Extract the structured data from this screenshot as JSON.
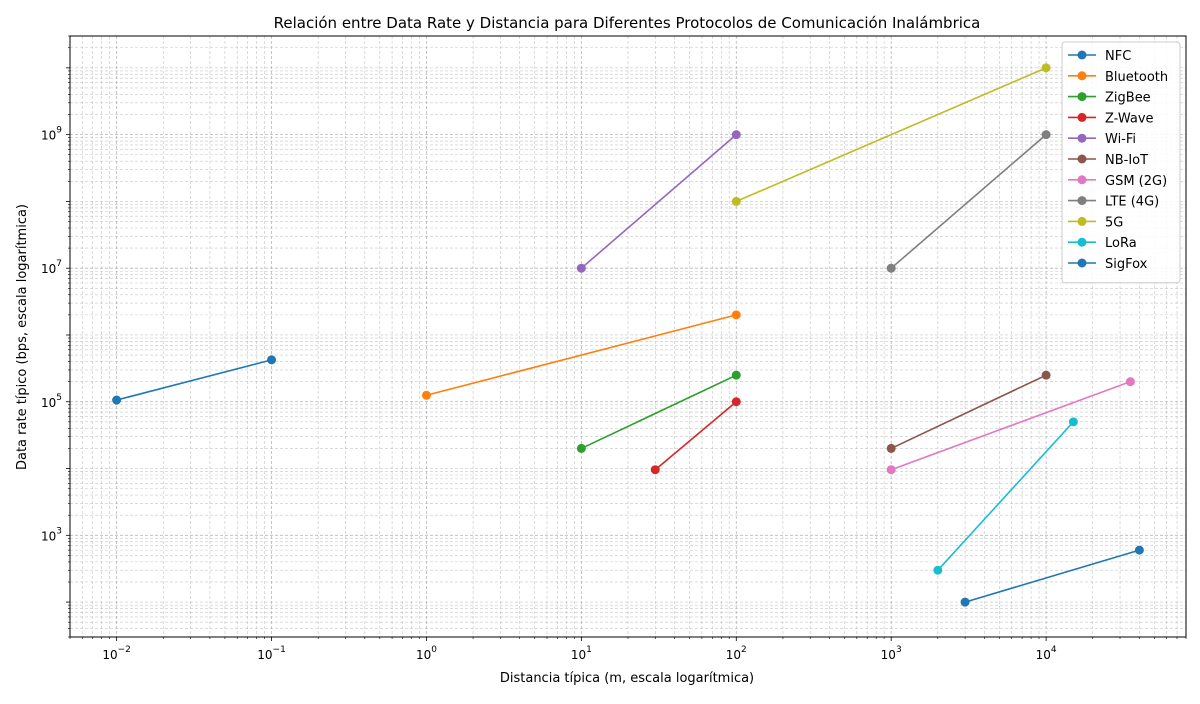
{
  "chart_data": {
    "type": "line",
    "title": "Relación entre Data Rate y Distancia para Diferentes Protocolos de Comunicación Inalámbrica",
    "xlabel": "Distancia típica (m, escala logarítmica)",
    "ylabel": "Data rate típico (bps, escala logarítmica)",
    "xscale": "log",
    "yscale": "log",
    "xlim": [
      0.005,
      80000
    ],
    "ylim": [
      30,
      30000000000
    ],
    "x_ticks": [
      {
        "value": 0.01,
        "base": "10",
        "exp": "−2"
      },
      {
        "value": 0.1,
        "base": "10",
        "exp": "−1"
      },
      {
        "value": 1,
        "base": "10",
        "exp": "0"
      },
      {
        "value": 10,
        "base": "10",
        "exp": "1"
      },
      {
        "value": 100,
        "base": "10",
        "exp": "2"
      },
      {
        "value": 1000,
        "base": "10",
        "exp": "3"
      },
      {
        "value": 10000,
        "base": "10",
        "exp": "4"
      }
    ],
    "y_ticks": [
      {
        "value": 1000,
        "base": "10",
        "exp": "3"
      },
      {
        "value": 100000,
        "base": "10",
        "exp": "5"
      },
      {
        "value": 10000000,
        "base": "10",
        "exp": "7"
      },
      {
        "value": 1000000000,
        "base": "10",
        "exp": "9"
      }
    ],
    "grid": true,
    "legend_position": "top-right",
    "series": [
      {
        "name": "NFC",
        "color": "#1f77b4",
        "points": [
          [
            0.01,
            106000
          ],
          [
            0.1,
            424000
          ]
        ]
      },
      {
        "name": "Bluetooth",
        "color": "#ff7f0e",
        "points": [
          [
            1,
            125000
          ],
          [
            100,
            2000000
          ]
        ]
      },
      {
        "name": "ZigBee",
        "color": "#2ca02c",
        "points": [
          [
            10,
            20000
          ],
          [
            100,
            250000
          ]
        ]
      },
      {
        "name": "Z-Wave",
        "color": "#d62728",
        "points": [
          [
            30,
            9600
          ],
          [
            100,
            100000
          ]
        ]
      },
      {
        "name": "Wi-Fi",
        "color": "#9467bd",
        "points": [
          [
            10,
            10000000
          ],
          [
            100,
            1000000000
          ]
        ]
      },
      {
        "name": "NB-IoT",
        "color": "#8c564b",
        "points": [
          [
            1000,
            20000
          ],
          [
            10000,
            250000
          ]
        ]
      },
      {
        "name": "GSM (2G)",
        "color": "#e377c2",
        "points": [
          [
            1000,
            9600
          ],
          [
            35000,
            200000
          ]
        ]
      },
      {
        "name": "LTE (4G)",
        "color": "#7f7f7f",
        "points": [
          [
            1000,
            10000000
          ],
          [
            10000,
            1000000000
          ]
        ]
      },
      {
        "name": "5G",
        "color": "#bcbd22",
        "points": [
          [
            100,
            100000000
          ],
          [
            10000,
            10000000000
          ]
        ]
      },
      {
        "name": "LoRa",
        "color": "#17becf",
        "points": [
          [
            2000,
            300
          ],
          [
            15000,
            50000
          ]
        ]
      },
      {
        "name": "SigFox",
        "color": "#1f77b4",
        "points": [
          [
            3000,
            100
          ],
          [
            40000,
            600
          ]
        ]
      }
    ]
  }
}
